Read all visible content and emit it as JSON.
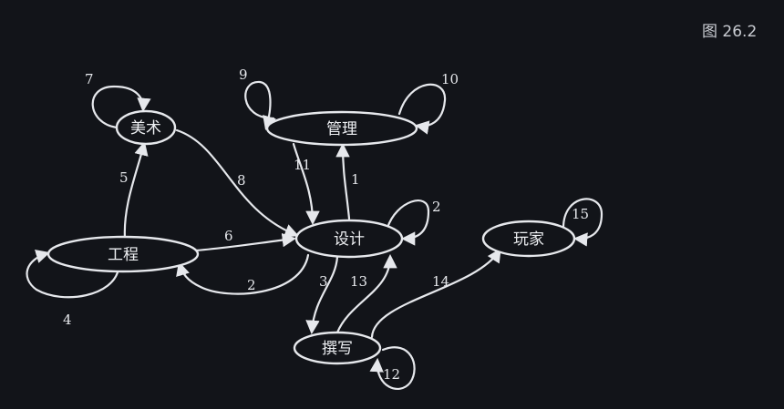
{
  "figure_label": "图 26.2",
  "nodes": {
    "art": "美术",
    "management": "管理",
    "engineering": "工程",
    "design": "设计",
    "players": "玩家",
    "writing": "撰写"
  },
  "edges": {
    "e1": "1",
    "e2a": "2",
    "e2b": "2",
    "e3": "3",
    "e4": "4",
    "e5": "5",
    "e6": "6",
    "e7": "7",
    "e8": "8",
    "e9": "9",
    "e10": "10",
    "e11": "11",
    "e12": "12",
    "e13": "13",
    "e14": "14",
    "e15": "15"
  },
  "colors": {
    "background": "#121419",
    "stroke": "#e6e8ec"
  }
}
